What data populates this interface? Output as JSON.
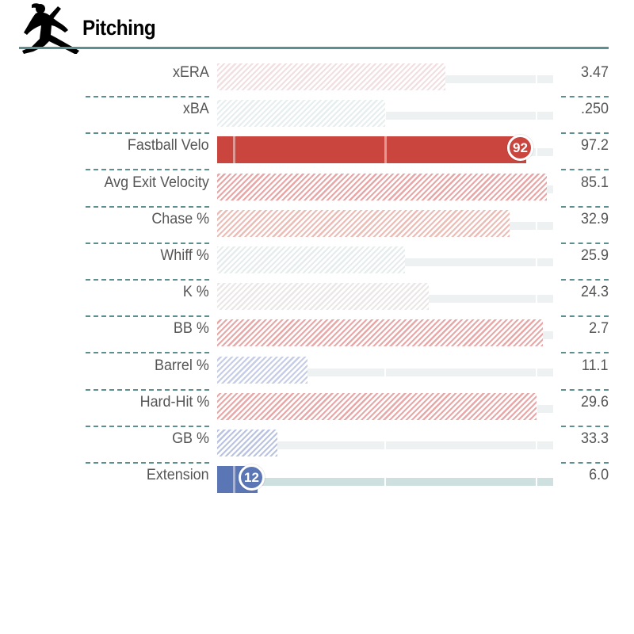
{
  "header": {
    "title": "Pitching",
    "icon": "pitcher-silhouette-icon",
    "rule_color": "#5d8f90"
  },
  "metrics": [
    {
      "key": "xera",
      "label": "xERA",
      "value": "3.47",
      "percentile": 68,
      "color": "#f1dfe1",
      "style": "hatched"
    },
    {
      "key": "xba",
      "label": "xBA",
      "value": ".250",
      "percentile": 50,
      "color": "#e6eeee",
      "style": "hatched"
    },
    {
      "key": "fastball-velo",
      "label": "Fastball Velo",
      "value": "97.2",
      "percentile": 92,
      "color": "#c9453e",
      "style": "solid",
      "badge": "92"
    },
    {
      "key": "avg-exit-velocity",
      "label": "Avg Exit Velocity",
      "value": "85.1",
      "percentile": 98,
      "color": "#e8a6a6",
      "style": "hatched"
    },
    {
      "key": "chase",
      "label": "Chase %",
      "value": "32.9",
      "percentile": 87,
      "color": "#ecbcb6",
      "style": "hatched"
    },
    {
      "key": "whiff",
      "label": "Whiff %",
      "value": "25.9",
      "percentile": 56,
      "color": "#e6ecec",
      "style": "hatched"
    },
    {
      "key": "k",
      "label": "K %",
      "value": "24.3",
      "percentile": 63,
      "color": "#ebe7e7",
      "style": "hatched"
    },
    {
      "key": "bb",
      "label": "BB %",
      "value": "2.7",
      "percentile": 97,
      "color": "#e8a8a8",
      "style": "hatched"
    },
    {
      "key": "barrel",
      "label": "Barrel %",
      "value": "11.1",
      "percentile": 27,
      "color": "#c6cde6",
      "style": "hatched"
    },
    {
      "key": "hard-hit",
      "label": "Hard-Hit %",
      "value": "29.6",
      "percentile": 95,
      "color": "#e8a8a8",
      "style": "hatched"
    },
    {
      "key": "gb",
      "label": "GB %",
      "value": "33.3",
      "percentile": 18,
      "color": "#bac4e2",
      "style": "hatched"
    },
    {
      "key": "extension",
      "label": "Extension",
      "value": "6.0",
      "percentile": 12,
      "color": "#5b76b4",
      "style": "solid",
      "badge": "12"
    }
  ],
  "colors": {
    "track": "#eef1f2",
    "track_highlight": "#cfe0e0",
    "separator": "#5d8f90"
  }
}
